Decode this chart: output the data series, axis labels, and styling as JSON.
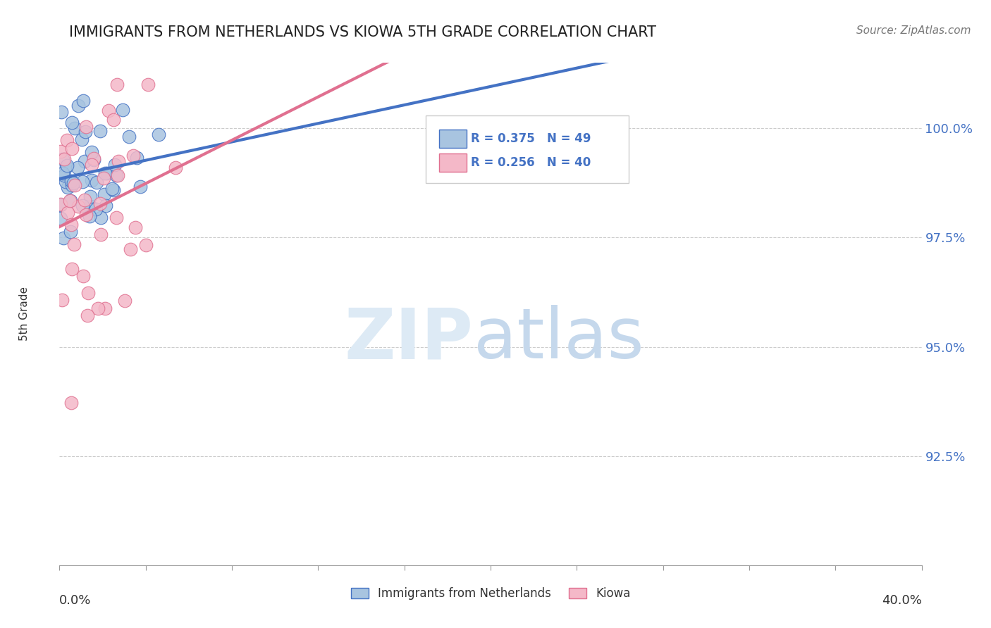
{
  "title": "IMMIGRANTS FROM NETHERLANDS VS KIOWA 5TH GRADE CORRELATION CHART",
  "source": "Source: ZipAtlas.com",
  "ylabel": "5th Grade",
  "right_yticks": [
    100.0,
    97.5,
    95.0,
    92.5
  ],
  "xlim": [
    0.0,
    40.0
  ],
  "ylim": [
    90.0,
    101.5
  ],
  "blue_R": 0.375,
  "blue_N": 49,
  "pink_R": 0.256,
  "pink_N": 40,
  "blue_color": "#a8c4e0",
  "blue_line_color": "#4472c4",
  "pink_color": "#f4b8c8",
  "pink_line_color": "#e07090",
  "legend_blue_label": "Immigrants from Netherlands",
  "legend_pink_label": "Kiowa"
}
